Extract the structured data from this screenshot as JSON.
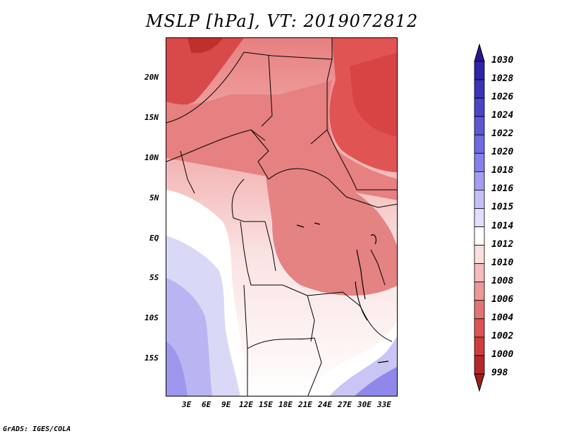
{
  "title": "MSLP [hPa], VT: 2019072812",
  "credit": "GrADS: IGES/COLA",
  "colors": {
    "red_dark": "#c0302a",
    "red": "#e04848",
    "red_mid": "#e88080",
    "pink": "#f3b6b6",
    "pink_light": "#fbe2e2",
    "white": "#ffffff",
    "lavender": "#d8d8f6",
    "blue_light": "#b8b4f2",
    "blue": "#7b74e6",
    "navy": "#2a1ea0"
  },
  "chart_data": {
    "type": "heatmap",
    "title": "MSLP [hPa], VT: 2019072812",
    "y_tick_labels": [
      "20N",
      "15N",
      "10N",
      "5N",
      "EQ",
      "5S",
      "10S",
      "15S"
    ],
    "x_tick_labels": [
      "3E",
      "6E",
      "9E",
      "12E",
      "15E",
      "18E",
      "21E",
      "24E",
      "27E",
      "30E",
      "33E"
    ],
    "colorbar_levels": [
      "1030",
      "1028",
      "1026",
      "1024",
      "1022",
      "1020",
      "1018",
      "1016",
      "1015",
      "1014",
      "1012",
      "1010",
      "1008",
      "1006",
      "1004",
      "1002",
      "1000",
      "998"
    ],
    "colorbar_colors": [
      "#28168f",
      "#2d24a8",
      "#3a34b8",
      "#4a44c6",
      "#5c58d4",
      "#6e6ae0",
      "#8580ea",
      "#a39ef2",
      "#c4c0f6",
      "#e0defa",
      "#ffffff",
      "#fbe0e0",
      "#f4bcbc",
      "#ec9898",
      "#e47474",
      "#dc5454",
      "#d03c3c",
      "#b8282a",
      "#a01c1c"
    ],
    "lon_range": [
      0,
      35
    ],
    "lat_range": [
      -20,
      25
    ]
  }
}
